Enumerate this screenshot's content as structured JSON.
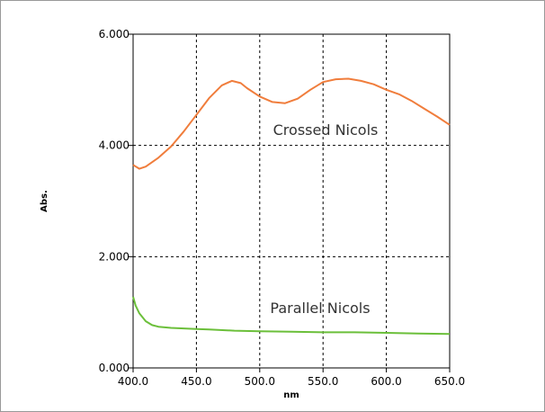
{
  "chart_data": {
    "type": "line",
    "xlabel": "nm",
    "ylabel": "Abs.",
    "xlim": [
      400,
      650
    ],
    "ylim": [
      0,
      6
    ],
    "x_ticks": [
      400,
      450,
      500,
      550,
      600,
      650
    ],
    "y_ticks": [
      0,
      2,
      4,
      6
    ],
    "x_tick_labels": [
      "400.0",
      "450.0",
      "500.0",
      "550.0",
      "600.0",
      "650.0"
    ],
    "y_tick_labels": [
      "0.000",
      "2.000",
      "4.000",
      "6.000"
    ],
    "grid": true,
    "series": [
      {
        "name": "Crossed Nicols",
        "color": "#f07d3c",
        "x": [
          400,
          405,
          410,
          420,
          430,
          440,
          450,
          460,
          470,
          478,
          485,
          490,
          500,
          510,
          520,
          530,
          540,
          550,
          560,
          570,
          580,
          590,
          600,
          610,
          620,
          630,
          640,
          650
        ],
        "y": [
          3.65,
          3.58,
          3.62,
          3.78,
          3.98,
          4.25,
          4.55,
          4.85,
          5.08,
          5.16,
          5.12,
          5.03,
          4.88,
          4.78,
          4.76,
          4.84,
          5.0,
          5.14,
          5.19,
          5.2,
          5.16,
          5.1,
          5.0,
          4.92,
          4.8,
          4.66,
          4.52,
          4.37
        ]
      },
      {
        "name": "Parallel Nicols",
        "color": "#6bbf3a",
        "x": [
          400,
          402,
          405,
          410,
          415,
          420,
          430,
          440,
          450,
          460,
          480,
          500,
          525,
          550,
          575,
          600,
          625,
          650
        ],
        "y": [
          1.28,
          1.12,
          0.98,
          0.84,
          0.77,
          0.74,
          0.72,
          0.71,
          0.7,
          0.69,
          0.67,
          0.66,
          0.65,
          0.64,
          0.64,
          0.63,
          0.62,
          0.61
        ]
      }
    ]
  }
}
